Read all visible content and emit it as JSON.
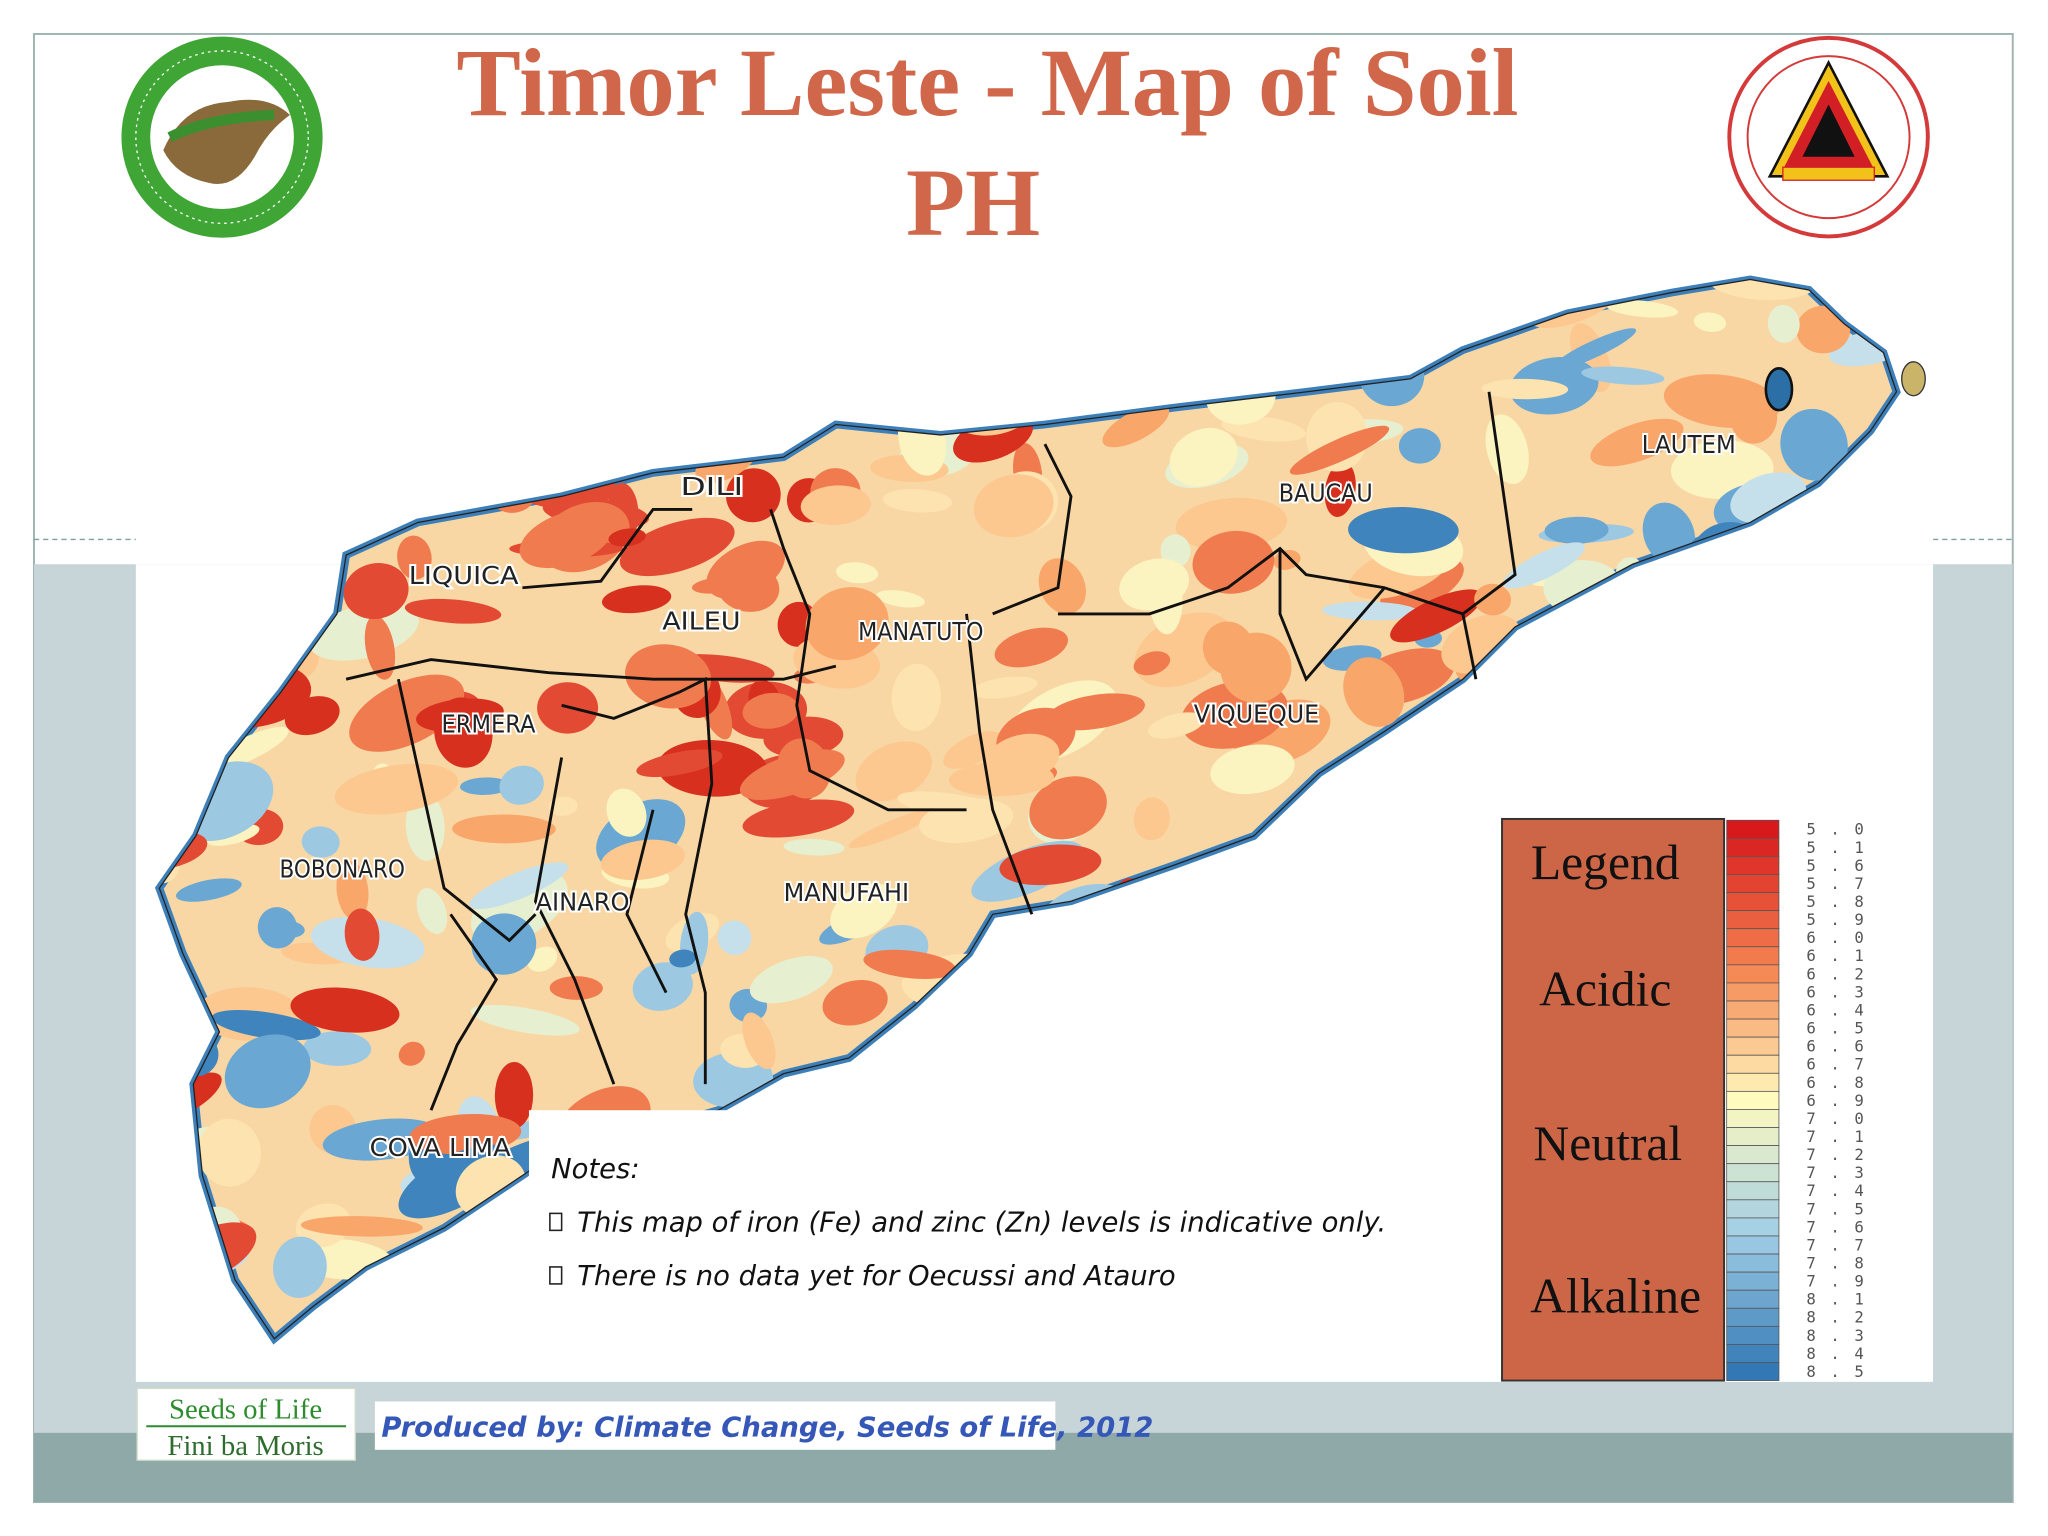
{
  "header": {
    "title_line1": "Timor Leste - Map of Soil",
    "title_line2": "PH"
  },
  "map": {
    "regions": [
      "DILI",
      "LIQUICA",
      "AILEU",
      "MANATUTO",
      "BAUCAU",
      "LAUTEM",
      "VIQUEQUE",
      "ERMERA",
      "BOBONARO",
      "AINARO",
      "MANUFAHI",
      "COVA LIMA"
    ]
  },
  "notes": {
    "heading": "Notes:",
    "items": [
      "This map of iron (Fe) and zinc (Zn) levels is indicative only.",
      "There is no data yet for Oecussi and Atauro"
    ]
  },
  "legend": {
    "title": "Legend",
    "classes": [
      "Acidic",
      "Neutral",
      "Alkaline"
    ],
    "values": [
      "5.0",
      "5.1",
      "5.6",
      "5.7",
      "5.8",
      "5.9",
      "6.0",
      "6.1",
      "6.2",
      "6.3",
      "6.4",
      "6.5",
      "6.6",
      "6.7",
      "6.8",
      "6.9",
      "7.0",
      "7.1",
      "7.2",
      "7.3",
      "7.4",
      "7.5",
      "7.6",
      "7.7",
      "7.8",
      "7.9",
      "8.1",
      "8.2",
      "8.3",
      "8.4",
      "8.5"
    ]
  },
  "footer": {
    "logo_line1": "Seeds of Life",
    "logo_line2": "Fini ba Moris",
    "credit": "Produced by:  Climate Change, Seeds of Life, 2012"
  }
}
